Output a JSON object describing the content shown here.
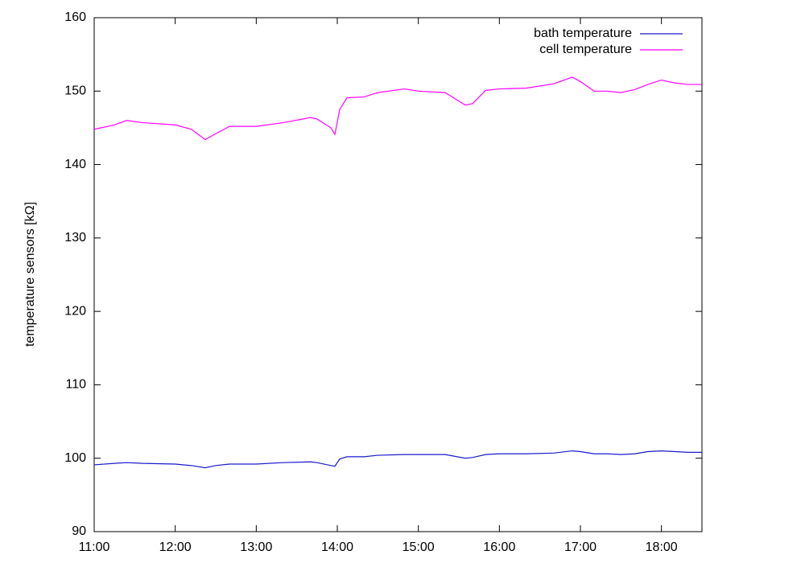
{
  "chart_data": {
    "type": "line",
    "ylabel": "temperature sensors [kΩ]",
    "x": [
      11,
      11.25,
      11.4,
      11.6,
      12,
      12.2,
      12.37,
      12.5,
      12.67,
      13,
      13.33,
      13.67,
      13.75,
      13.92,
      13.97,
      14.03,
      14.12,
      14.33,
      14.5,
      14.83,
      15,
      15.33,
      15.58,
      15.67,
      15.83,
      16,
      16.33,
      16.67,
      16.9,
      17,
      17.17,
      17.33,
      17.5,
      17.67,
      17.83,
      18,
      18.17,
      18.33,
      18.5
    ],
    "series": [
      {
        "name": "bath temperature",
        "color": "#1a1acc",
        "values": [
          99.1,
          99.3,
          99.4,
          99.3,
          99.2,
          99.0,
          98.7,
          99.0,
          99.2,
          99.2,
          99.4,
          99.5,
          99.4,
          99.0,
          98.9,
          99.9,
          100.2,
          100.2,
          100.4,
          100.5,
          100.5,
          100.5,
          100.0,
          100.1,
          100.5,
          100.6,
          100.6,
          100.7,
          101.0,
          100.9,
          100.6,
          100.6,
          100.5,
          100.6,
          100.9,
          101.0,
          100.9,
          100.8,
          100.8
        ]
      },
      {
        "name": "cell temperature",
        "color": "#ff00ff",
        "values": [
          144.8,
          145.4,
          146.0,
          145.7,
          145.4,
          144.8,
          143.4,
          144.2,
          145.2,
          145.2,
          145.7,
          146.4,
          146.2,
          145.0,
          144.1,
          147.5,
          149.1,
          149.2,
          149.8,
          150.3,
          150.0,
          149.8,
          148.1,
          148.3,
          150.1,
          150.3,
          150.4,
          151.0,
          151.9,
          151.3,
          150.0,
          150.0,
          149.8,
          150.2,
          150.9,
          151.5,
          151.1,
          150.9,
          150.9
        ]
      }
    ],
    "xlim": [
      11,
      18.5
    ],
    "xticks": [
      {
        "value": 11,
        "label": "11:00"
      },
      {
        "value": 12,
        "label": "12:00"
      },
      {
        "value": 13,
        "label": "13:00"
      },
      {
        "value": 14,
        "label": "14:00"
      },
      {
        "value": 15,
        "label": "15:00"
      },
      {
        "value": 16,
        "label": "16:00"
      },
      {
        "value": 17,
        "label": "17:00"
      },
      {
        "value": 18,
        "label": "18:00"
      }
    ],
    "ylim": [
      90,
      160
    ],
    "yticks": [
      90,
      100,
      110,
      120,
      130,
      140,
      150,
      160
    ],
    "legend": "top-right"
  }
}
